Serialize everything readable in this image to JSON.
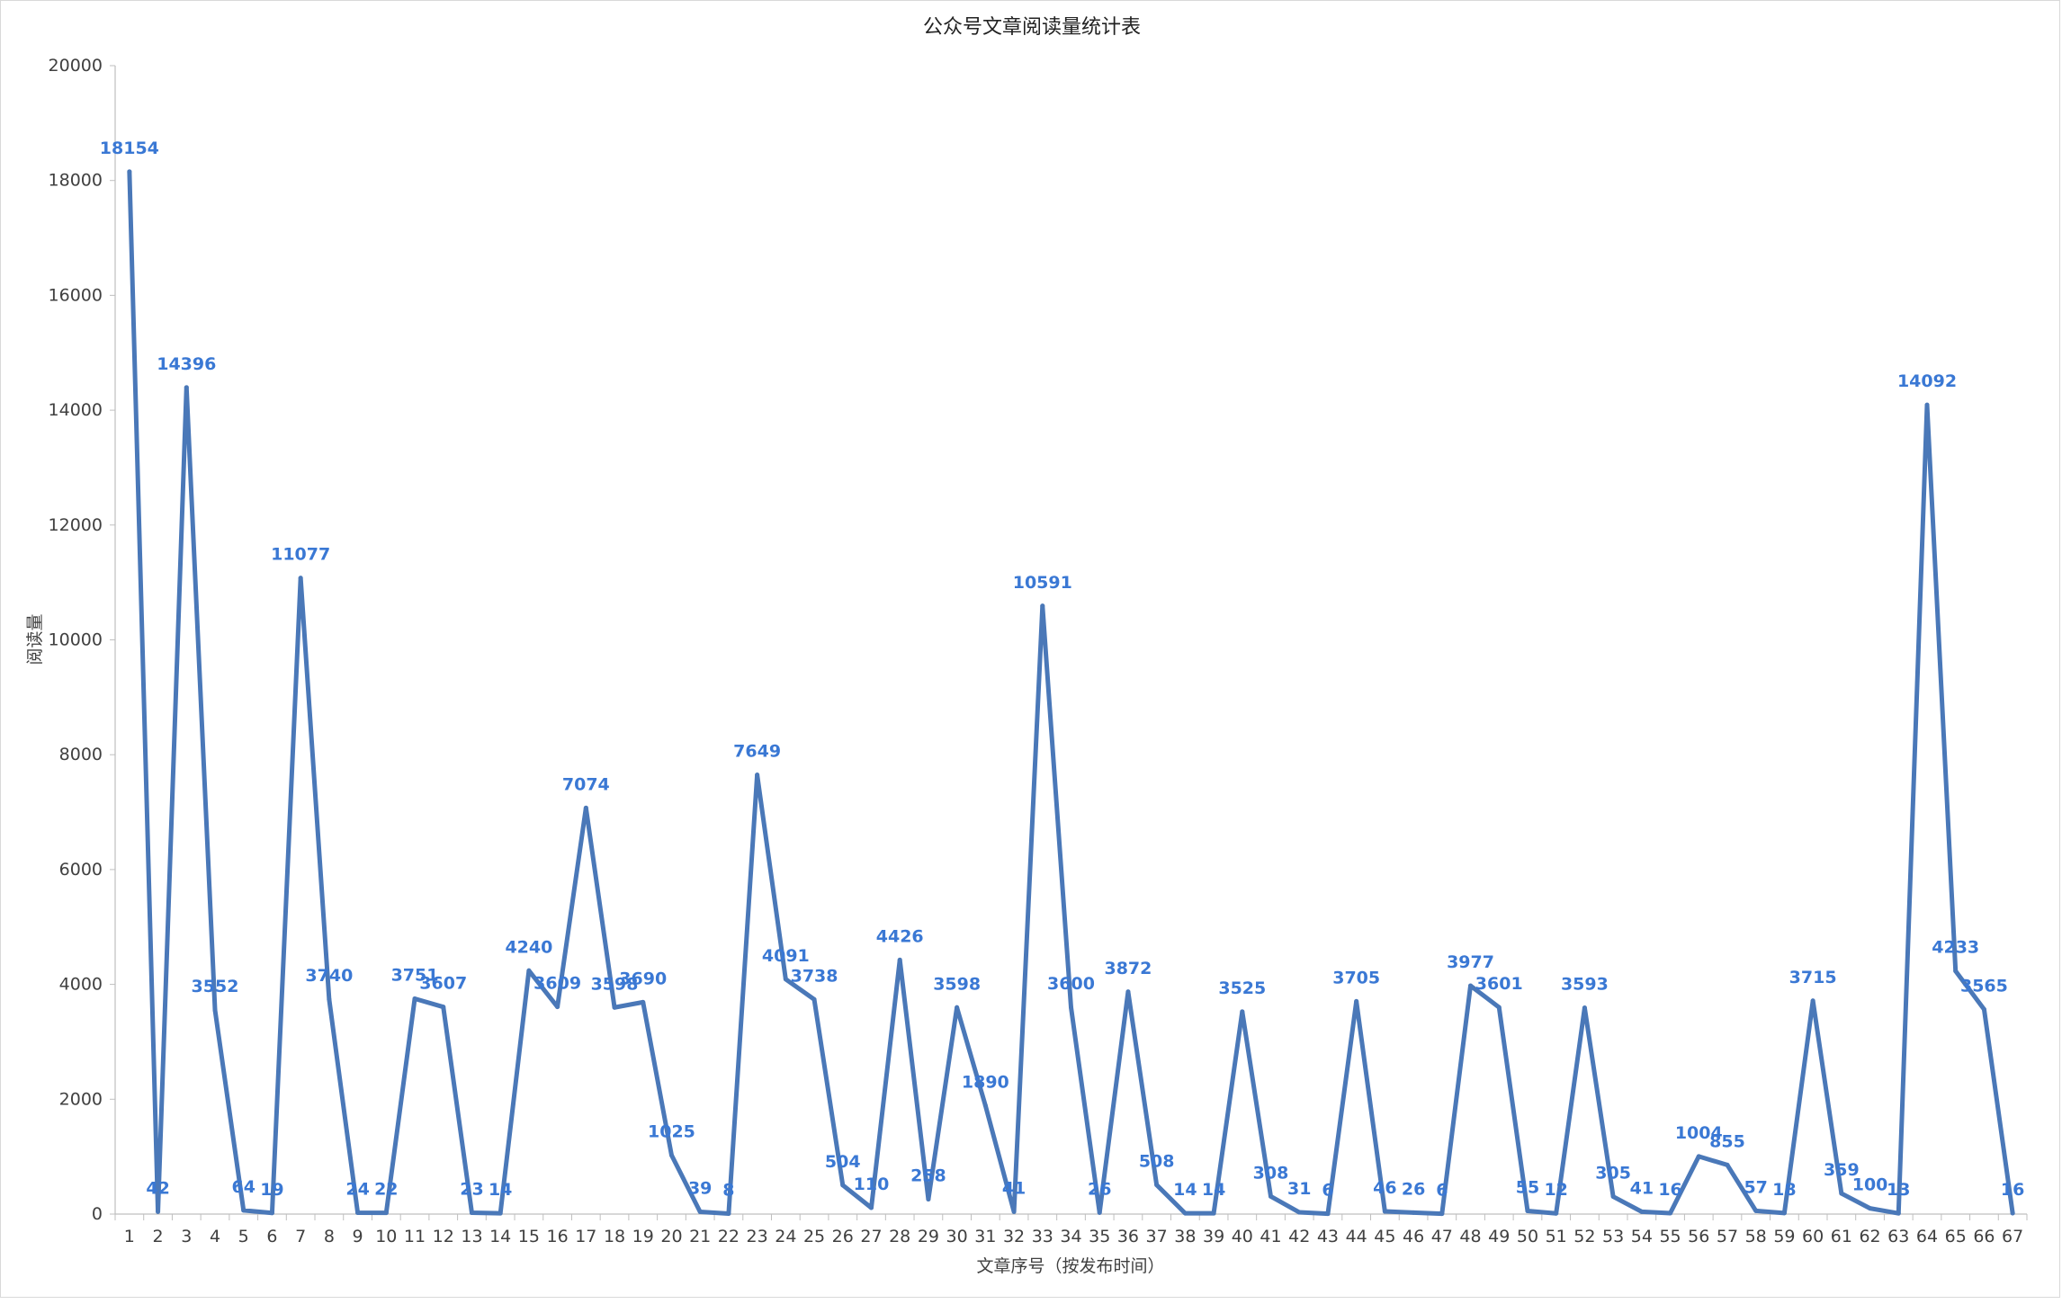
{
  "chart_data": {
    "type": "line",
    "title": "公众号文章阅读量统计表",
    "xlabel": "文章序号（按发布时间）",
    "ylabel": "阅读量",
    "ylim": [
      0,
      20000
    ],
    "yticks": [
      0,
      2000,
      4000,
      6000,
      8000,
      10000,
      12000,
      14000,
      16000,
      18000,
      20000
    ],
    "grid": false,
    "legend": "none",
    "data_labels": true,
    "line_color": "#4a78b8",
    "label_color": "#3a78d4",
    "categories": [
      "1",
      "2",
      "3",
      "4",
      "5",
      "6",
      "7",
      "8",
      "9",
      "10",
      "11",
      "12",
      "13",
      "14",
      "15",
      "16",
      "17",
      "18",
      "19",
      "20",
      "21",
      "22",
      "23",
      "24",
      "25",
      "26",
      "27",
      "28",
      "29",
      "30",
      "31",
      "32",
      "33",
      "34",
      "35",
      "36",
      "37",
      "38",
      "39",
      "40",
      "41",
      "42",
      "43",
      "44",
      "45",
      "46",
      "47",
      "48",
      "49",
      "50",
      "51",
      "52",
      "53",
      "54",
      "55",
      "56",
      "57",
      "58",
      "59",
      "60",
      "61",
      "62",
      "63",
      "64",
      "65",
      "66",
      "67"
    ],
    "series": [
      {
        "values": [
          18154,
          42,
          14396,
          3552,
          64,
          19,
          11077,
          3740,
          24,
          22,
          3751,
          3607,
          23,
          14,
          4240,
          3609,
          7074,
          3598,
          3690,
          1025,
          39,
          8,
          7649,
          4091,
          3738,
          504,
          110,
          4426,
          258,
          3598,
          1890,
          41,
          10591,
          3600,
          26,
          3872,
          508,
          14,
          14,
          3525,
          308,
          31,
          6,
          3705,
          46,
          26,
          6,
          3977,
          3601,
          55,
          12,
          3593,
          305,
          41,
          16,
          1004,
          855,
          57,
          18,
          3715,
          359,
          100,
          13,
          14092,
          4233,
          3565,
          16
        ]
      }
    ]
  }
}
